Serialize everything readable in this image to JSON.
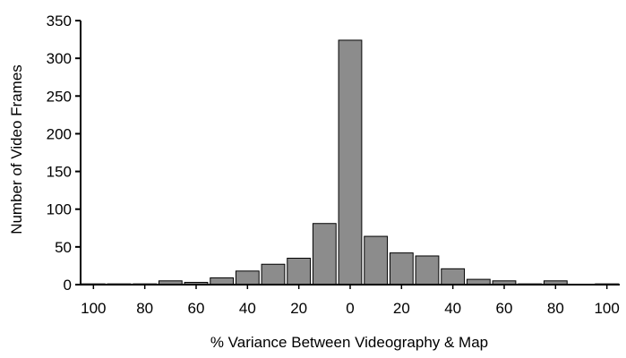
{
  "chart_data": {
    "type": "bar",
    "title": "",
    "xlabel": "% Variance Between Videography & Map",
    "ylabel": "Number of Video Frames",
    "ylim": [
      0,
      350
    ],
    "y_ticks": [
      "0",
      "50",
      "100",
      "150",
      "200",
      "250",
      "300",
      "350"
    ],
    "x_tick_labels": [
      "100",
      "80",
      "60",
      "40",
      "20",
      "0",
      "20",
      "40",
      "60",
      "80",
      "100"
    ],
    "categories": [
      "-100",
      "-90",
      "-80",
      "-70",
      "-60",
      "-50",
      "-40",
      "-30",
      "-20",
      "-10",
      "0",
      "10",
      "20",
      "30",
      "40",
      "50",
      "60",
      "70",
      "80",
      "90",
      "100"
    ],
    "values": [
      1,
      1,
      1,
      5,
      3,
      9,
      18,
      27,
      35,
      81,
      324,
      64,
      42,
      38,
      21,
      7,
      5,
      1,
      5,
      0,
      1
    ],
    "grid": false,
    "legend": "none",
    "colors": {
      "bar_fill": "#8c8c8c",
      "bar_stroke": "#000000",
      "axis": "#000000"
    }
  }
}
